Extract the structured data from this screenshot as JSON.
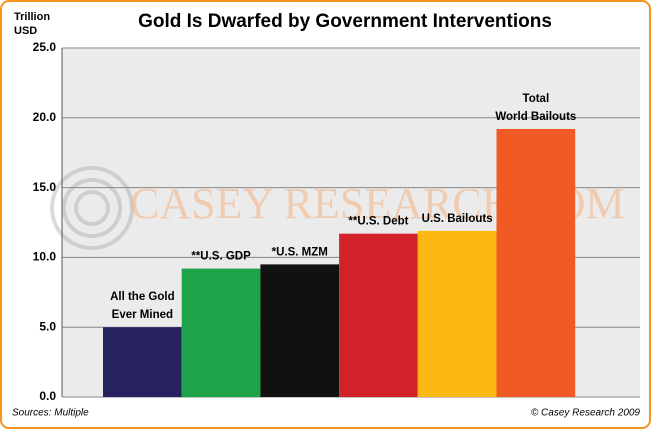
{
  "chart_data": {
    "type": "bar",
    "title": "Gold Is Dwarfed by Government Interventions",
    "y_label": [
      "Trillion",
      "USD"
    ],
    "categories": [
      [
        "All the Gold",
        "Ever Mined"
      ],
      [
        "**U.S. GDP"
      ],
      [
        "*U.S. MZM"
      ],
      [
        "**U.S. Debt"
      ],
      [
        "U.S. Bailouts"
      ],
      [
        "Total",
        "World Bailouts"
      ]
    ],
    "values": [
      5.0,
      9.2,
      9.5,
      11.7,
      11.9,
      19.2
    ],
    "colors": [
      "#262262",
      "#1fa34a",
      "#111111",
      "#d2232a",
      "#fdb913",
      "#f15a24"
    ],
    "ylim": [
      0,
      25
    ],
    "yticks": [
      {
        "value": 0,
        "label": "0.0"
      },
      {
        "value": 5,
        "label": "5.0"
      },
      {
        "value": 10,
        "label": "10.0"
      },
      {
        "value": 15,
        "label": "15.0"
      },
      {
        "value": 20,
        "label": "20.0"
      },
      {
        "value": 25,
        "label": "25.0"
      }
    ],
    "grid": true,
    "watermark": "CASEY RESEARCH.COM",
    "source": "Sources: Multiple",
    "credit": "© Casey Research 2009"
  }
}
